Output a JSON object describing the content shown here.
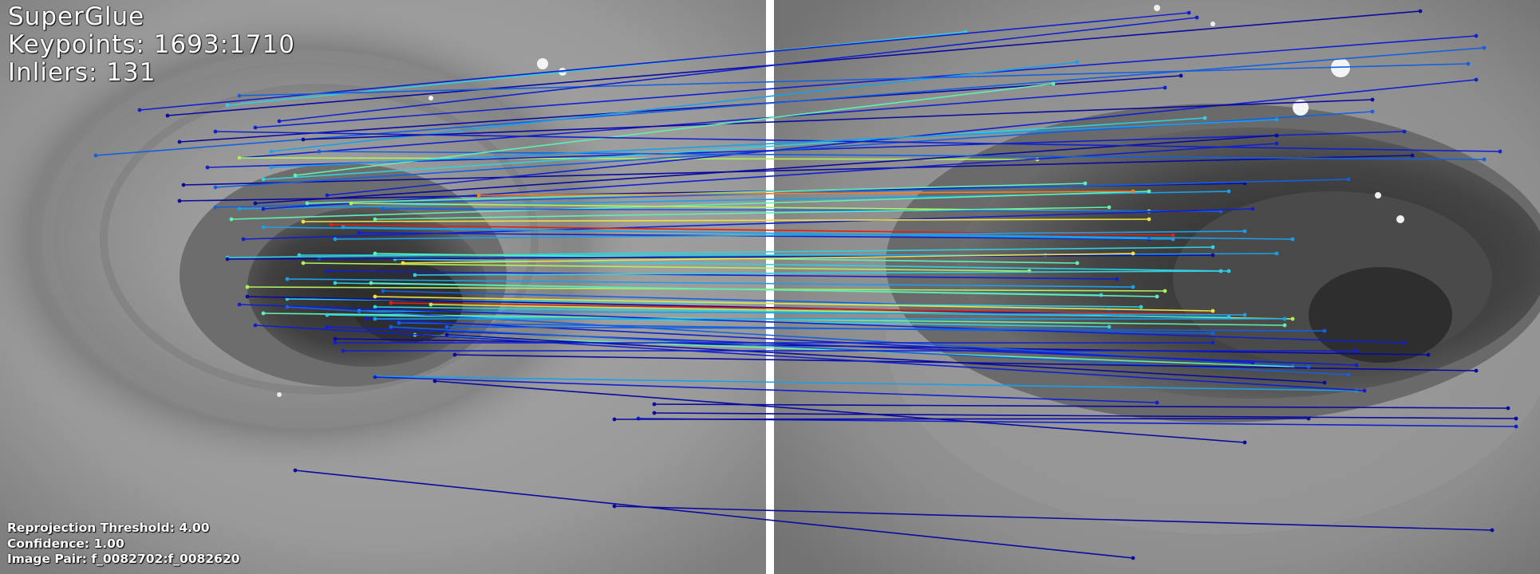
{
  "header": {
    "method": "SuperGlue",
    "keypoints": "Keypoints: 1693:1710",
    "inliers": "Inliers: 131"
  },
  "footer": {
    "threshold": "Reprojection Threshold: 4.00",
    "confidence": "Confidence: 1.00",
    "image_pair": "Image Pair: f_0082702:f_0082620"
  },
  "colors": {
    "divider": "#ffffff",
    "match_palette": [
      "#0a0aa0",
      "#1020d0",
      "#1560e0",
      "#1aa0e8",
      "#30d0e0",
      "#60f0b0",
      "#b0f060",
      "#f0e040",
      "#f08020",
      "#e02010"
    ]
  },
  "images": {
    "left": "image-0",
    "right": "image-1"
  }
}
